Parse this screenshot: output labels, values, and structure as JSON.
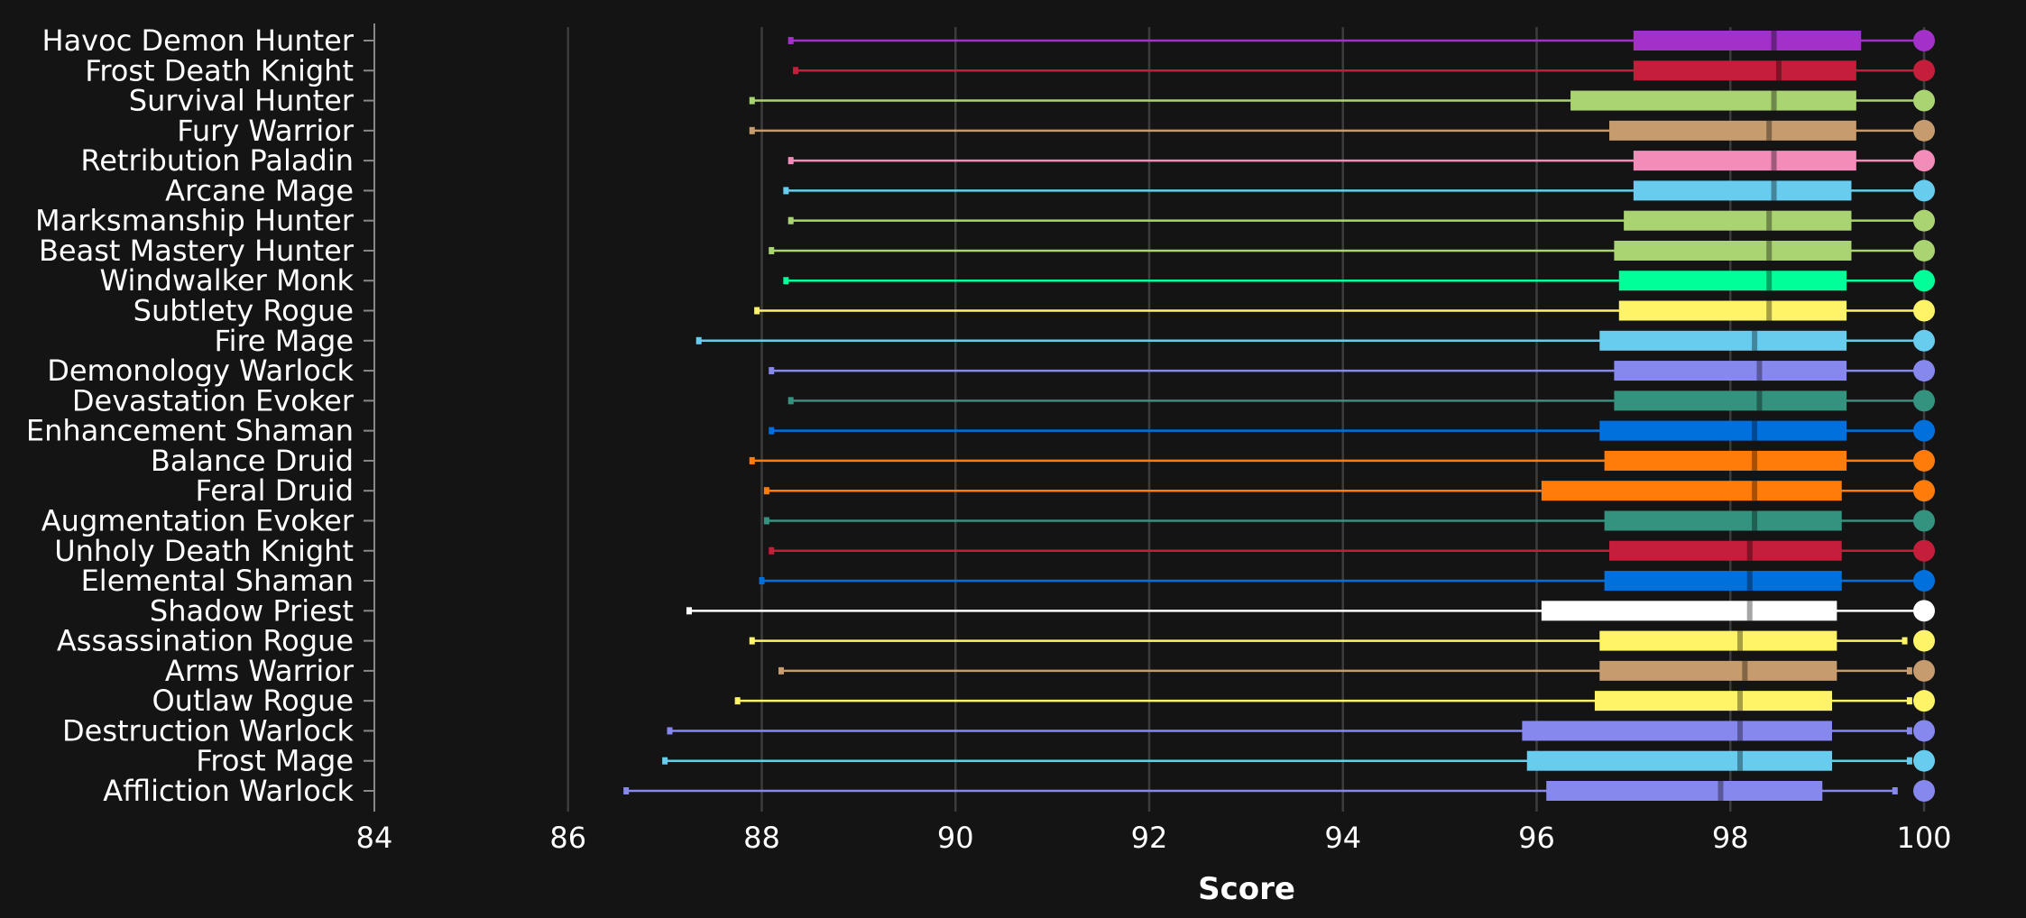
{
  "chart_data": {
    "type": "boxplot",
    "xlabel": "Score",
    "xlim": [
      84,
      100
    ],
    "xticks": [
      84,
      86,
      88,
      90,
      92,
      94,
      96,
      98,
      100
    ],
    "grid": "vertical",
    "orientation": "horizontal",
    "series": [
      {
        "category": "Havoc Demon Hunter",
        "color": "#a330c9",
        "min": 88.3,
        "q1": 97.0,
        "median": 98.45,
        "q3": 99.35,
        "max": 100.0
      },
      {
        "category": "Frost Death Knight",
        "color": "#c41e3a",
        "min": 88.35,
        "q1": 97.0,
        "median": 98.5,
        "q3": 99.3,
        "max": 100.0
      },
      {
        "category": "Survival Hunter",
        "color": "#aad372",
        "min": 87.9,
        "q1": 96.35,
        "median": 98.45,
        "q3": 99.3,
        "max": 100.0
      },
      {
        "category": "Fury Warrior",
        "color": "#c69b6d",
        "min": 87.9,
        "q1": 96.75,
        "median": 98.4,
        "q3": 99.3,
        "max": 100.0
      },
      {
        "category": "Retribution Paladin",
        "color": "#f48cba",
        "min": 88.3,
        "q1": 97.0,
        "median": 98.45,
        "q3": 99.3,
        "max": 100.0
      },
      {
        "category": "Arcane Mage",
        "color": "#68ccef",
        "min": 88.25,
        "q1": 97.0,
        "median": 98.45,
        "q3": 99.25,
        "max": 100.0
      },
      {
        "category": "Marksmanship Hunter",
        "color": "#aad372",
        "min": 88.3,
        "q1": 96.9,
        "median": 98.4,
        "q3": 99.25,
        "max": 100.0
      },
      {
        "category": "Beast Mastery Hunter",
        "color": "#aad372",
        "min": 88.1,
        "q1": 96.8,
        "median": 98.4,
        "q3": 99.25,
        "max": 100.0
      },
      {
        "category": "Windwalker Monk",
        "color": "#00ff98",
        "min": 88.25,
        "q1": 96.85,
        "median": 98.4,
        "q3": 99.2,
        "max": 100.0
      },
      {
        "category": "Subtlety Rogue",
        "color": "#fff468",
        "min": 87.95,
        "q1": 96.85,
        "median": 98.4,
        "q3": 99.2,
        "max": 100.0
      },
      {
        "category": "Fire Mage",
        "color": "#68ccef",
        "min": 87.35,
        "q1": 96.65,
        "median": 98.25,
        "q3": 99.2,
        "max": 100.0
      },
      {
        "category": "Demonology Warlock",
        "color": "#8788ee",
        "min": 88.1,
        "q1": 96.8,
        "median": 98.3,
        "q3": 99.2,
        "max": 100.0
      },
      {
        "category": "Devastation Evoker",
        "color": "#33937f",
        "min": 88.3,
        "q1": 96.8,
        "median": 98.3,
        "q3": 99.2,
        "max": 100.0
      },
      {
        "category": "Enhancement Shaman",
        "color": "#0070dd",
        "min": 88.1,
        "q1": 96.65,
        "median": 98.25,
        "q3": 99.2,
        "max": 100.0
      },
      {
        "category": "Balance Druid",
        "color": "#ff7c0a",
        "min": 87.9,
        "q1": 96.7,
        "median": 98.25,
        "q3": 99.2,
        "max": 100.0
      },
      {
        "category": "Feral Druid",
        "color": "#ff7c0a",
        "min": 88.05,
        "q1": 96.05,
        "median": 98.25,
        "q3": 99.15,
        "max": 100.0
      },
      {
        "category": "Augmentation Evoker",
        "color": "#33937f",
        "min": 88.05,
        "q1": 96.7,
        "median": 98.25,
        "q3": 99.15,
        "max": 100.0
      },
      {
        "category": "Unholy Death Knight",
        "color": "#c41e3a",
        "min": 88.1,
        "q1": 96.75,
        "median": 98.2,
        "q3": 99.15,
        "max": 100.0
      },
      {
        "category": "Elemental Shaman",
        "color": "#0070dd",
        "min": 88.0,
        "q1": 96.7,
        "median": 98.2,
        "q3": 99.15,
        "max": 100.0
      },
      {
        "category": "Shadow Priest",
        "color": "#ffffff",
        "min": 87.25,
        "q1": 96.05,
        "median": 98.2,
        "q3": 99.1,
        "max": 100.0
      },
      {
        "category": "Assassination Rogue",
        "color": "#fff468",
        "min": 87.9,
        "q1": 96.65,
        "median": 98.1,
        "q3": 99.1,
        "max": 99.8
      },
      {
        "category": "Arms Warrior",
        "color": "#c69b6d",
        "min": 88.2,
        "q1": 96.65,
        "median": 98.15,
        "q3": 99.1,
        "max": 99.85
      },
      {
        "category": "Outlaw Rogue",
        "color": "#fff468",
        "min": 87.75,
        "q1": 96.6,
        "median": 98.1,
        "q3": 99.05,
        "max": 99.85
      },
      {
        "category": "Destruction Warlock",
        "color": "#8788ee",
        "min": 87.05,
        "q1": 95.85,
        "median": 98.1,
        "q3": 99.05,
        "max": 99.85
      },
      {
        "category": "Frost Mage",
        "color": "#68ccef",
        "min": 87.0,
        "q1": 95.9,
        "median": 98.1,
        "q3": 99.05,
        "max": 99.85
      },
      {
        "category": "Affliction Warlock",
        "color": "#8788ee",
        "min": 86.6,
        "q1": 96.1,
        "median": 97.9,
        "q3": 98.95,
        "max": 99.7
      }
    ]
  }
}
